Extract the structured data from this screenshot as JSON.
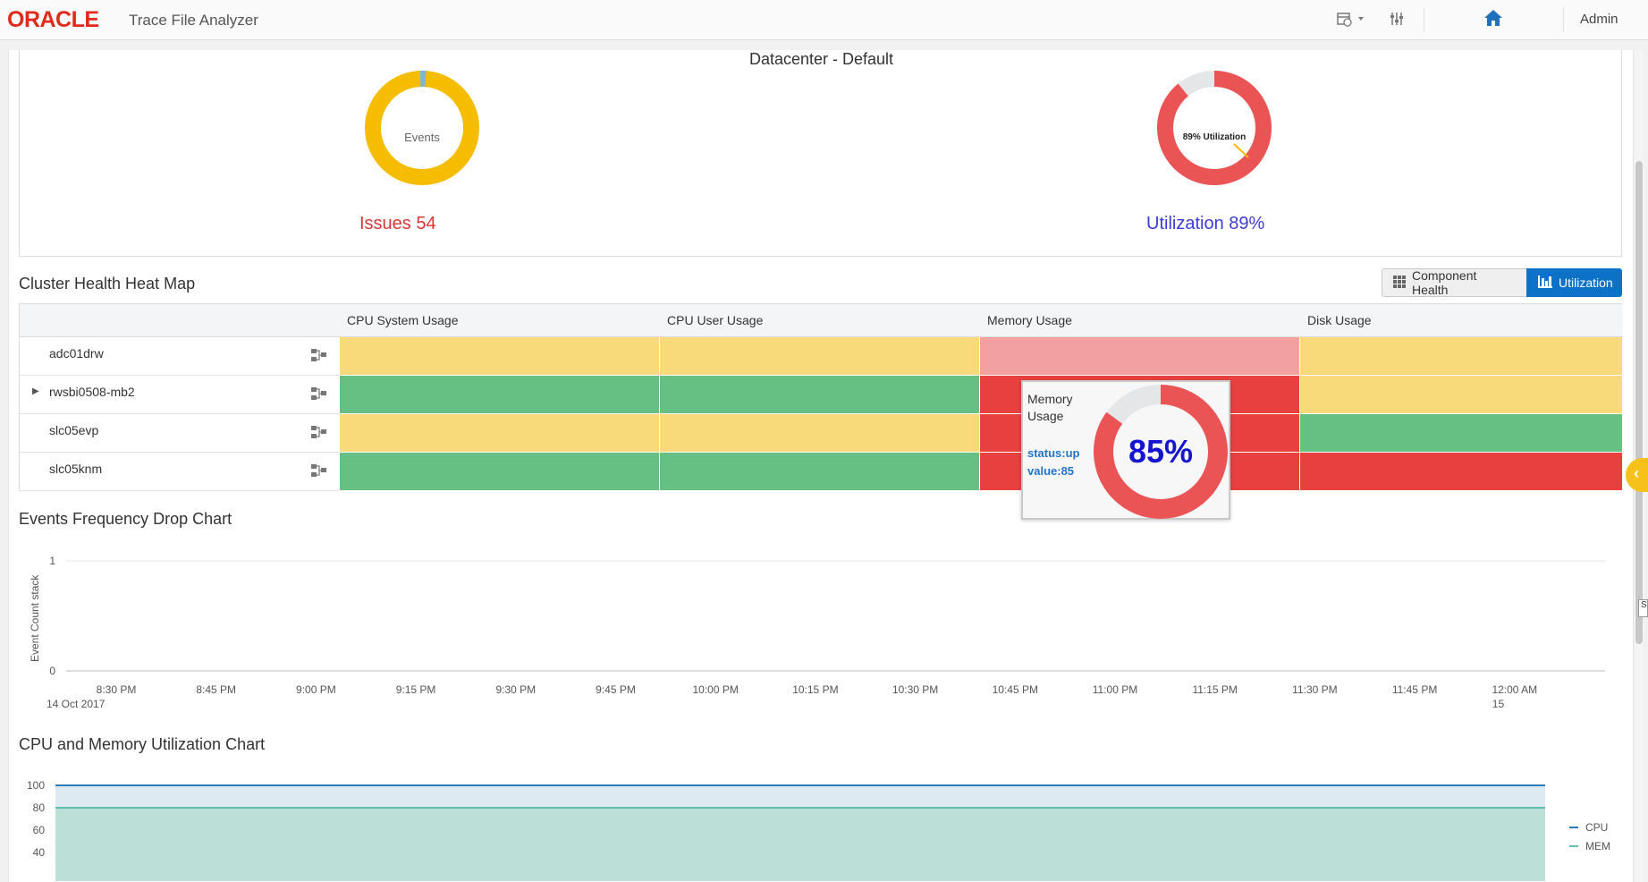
{
  "header": {
    "logo": "ORACLE",
    "app_title": "Trace File Analyzer",
    "user": "Admin"
  },
  "datacenter": {
    "title": "Datacenter - Default",
    "events_donut_label": "Events",
    "utilization_donut_label": "89% Utilization",
    "issues_text": "Issues 54",
    "utilization_text": "Utilization 89%",
    "utilization_percent": 89
  },
  "heatmap": {
    "title": "Cluster Health Heat Map",
    "toggle_component_health": "Component Health",
    "toggle_utilization": "Utilization",
    "columns": [
      "CPU System Usage",
      "CPU User Usage",
      "Memory Usage",
      "Disk Usage"
    ],
    "rows": [
      {
        "host": "adc01drw",
        "expandable": false,
        "cells": [
          "#f8da7a",
          "#f8da7a",
          "#f3a0a0",
          "#f8da7a"
        ]
      },
      {
        "host": "rwsbi0508-mb2",
        "expandable": true,
        "cells": [
          "#67c083",
          "#67c083",
          "#e8403f",
          "#f8da7a"
        ]
      },
      {
        "host": "slc05evp",
        "expandable": false,
        "cells": [
          "#f8da7a",
          "#f8da7a",
          "#e8403f",
          "#67c083"
        ]
      },
      {
        "host": "slc05knm",
        "expandable": false,
        "cells": [
          "#67c083",
          "#67c083",
          "#e8403f",
          "#e8403f"
        ]
      }
    ],
    "tooltip": {
      "title": "Memory Usage",
      "status": "status:up",
      "value_label": "value:85",
      "percent_text": "85%",
      "percent": 85
    }
  },
  "events_chart": {
    "title": "Events Frequency Drop Chart",
    "chart_data": {
      "type": "line",
      "ylabel": "Event Count stack",
      "ylim": [
        0,
        1
      ],
      "y_ticks": [
        "0",
        "1"
      ],
      "x_ticks": [
        "8:30 PM",
        "8:45 PM",
        "9:00 PM",
        "9:15 PM",
        "9:30 PM",
        "9:45 PM",
        "10:00 PM",
        "10:15 PM",
        "10:30 PM",
        "10:45 PM",
        "11:00 PM",
        "11:15 PM",
        "11:30 PM",
        "11:45 PM",
        "12:00 AM"
      ],
      "x_subticks": {
        "first": "14 Oct 2017",
        "last": "15"
      },
      "series": []
    }
  },
  "util_chart": {
    "title": "CPU and Memory Utilization Chart",
    "chart_data": {
      "type": "area",
      "y_ticks": [
        "100",
        "80",
        "60",
        "40"
      ],
      "series": [
        {
          "name": "CPU",
          "value": 100,
          "color": "#2a7ab8"
        },
        {
          "name": "MEM",
          "value": 80,
          "color": "#5fbfa8"
        }
      ]
    }
  },
  "colors": {
    "events_donut": "#f6bc00",
    "events_donut_slice": "#7cb6dd",
    "util_donut": "#ea5455",
    "util_donut_rest": "#e4e6e8",
    "brand": "#e02a1c",
    "accent": "#0b72c7"
  }
}
